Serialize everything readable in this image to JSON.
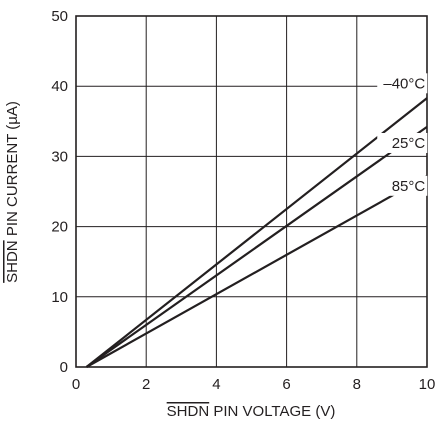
{
  "chart_data": {
    "type": "line",
    "xlabel_overline": "SHDN",
    "xlabel_rest": " PIN VOLTAGE (V)",
    "ylabel_overline": "SHDN",
    "ylabel_rest": " PIN CURRENT (µA)",
    "xlim": [
      0,
      10
    ],
    "ylim": [
      0,
      50
    ],
    "xticks": [
      0,
      2,
      4,
      6,
      8,
      10
    ],
    "yticks": [
      0,
      10,
      20,
      30,
      40,
      50
    ],
    "grid": true,
    "series": [
      {
        "name": "–40°C",
        "x": [
          0.3,
          10
        ],
        "y": [
          0,
          38.3
        ]
      },
      {
        "name": "25°C",
        "x": [
          0.3,
          10
        ],
        "y": [
          0,
          34.2
        ]
      },
      {
        "name": "85°C",
        "x": [
          0.3,
          10
        ],
        "y": [
          0,
          27.2
        ]
      }
    ]
  }
}
